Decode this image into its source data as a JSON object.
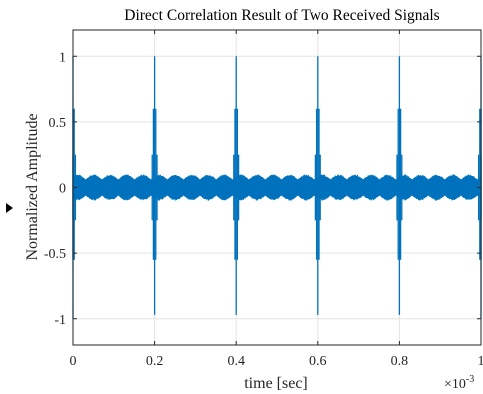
{
  "chart_data": {
    "type": "line",
    "title": "Direct Correlation Result of Two Received Signals",
    "xlabel": "time [sec]",
    "ylabel": "Normalized Amplitude",
    "x_exponent_base": "×10",
    "x_exponent_power": "-3",
    "xlim": [
      0,
      1
    ],
    "ylim": [
      -1.2,
      1.2
    ],
    "x_ticks": [
      0,
      0.2,
      0.4,
      0.6,
      0.8,
      1
    ],
    "x_tick_labels": [
      "0",
      "0.2",
      "0.4",
      "0.6",
      "0.8",
      "1"
    ],
    "y_ticks": [
      1,
      0.5,
      0,
      -0.5,
      -1
    ],
    "y_tick_labels": [
      "1",
      "0.5",
      "0",
      "-0.5",
      "-1"
    ],
    "grid": true,
    "line_color": "#0072BD",
    "noise_band": [
      -0.1,
      0.1
    ],
    "series": [
      {
        "peaks": [
          {
            "x": 0.0,
            "y_max": 1.0,
            "y_min": -1.0
          },
          {
            "x": 0.2,
            "y_max": 1.0,
            "y_min": -0.97
          },
          {
            "x": 0.4,
            "y_max": 1.0,
            "y_min": -0.97
          },
          {
            "x": 0.6,
            "y_max": 1.0,
            "y_min": -0.97
          },
          {
            "x": 0.8,
            "y_max": 1.0,
            "y_min": -0.97
          },
          {
            "x": 1.0,
            "y_max": 1.0,
            "y_min": -1.0
          }
        ]
      }
    ]
  }
}
